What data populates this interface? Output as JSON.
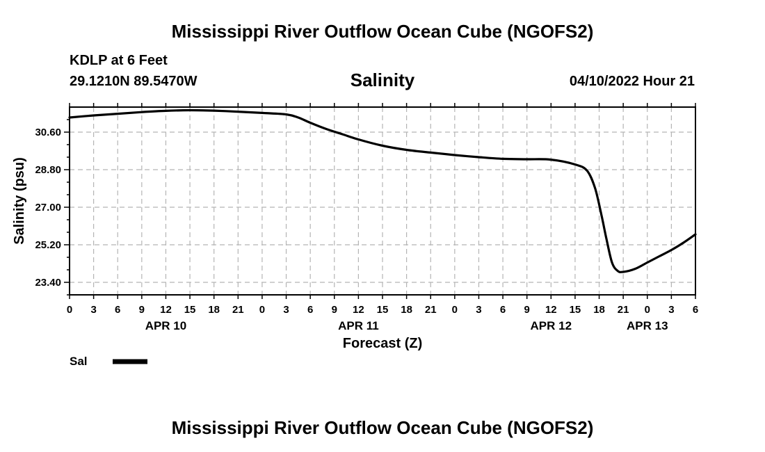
{
  "header": {
    "title": "Mississippi River Outflow Ocean Cube (NGOFS2)",
    "station": "KDLP at 6 Feet",
    "coords": "29.1210N  89.5470W",
    "datetime": "04/10/2022 Hour 21"
  },
  "footer": {
    "title": "Mississippi River Outflow Ocean Cube (NGOFS2)"
  },
  "colors": {
    "line": "#000000",
    "grid": "#b4b4b4"
  },
  "chart_data": {
    "type": "line",
    "title": "Salinity",
    "xlabel": "Forecast (Z)",
    "ylabel": "Salinity (psu)",
    "xlim": [
      0,
      78
    ],
    "ylim": [
      22.8,
      31.8
    ],
    "grid": true,
    "yticks": [
      23.4,
      25.2,
      27.0,
      28.8,
      30.6
    ],
    "ytick_labels": [
      "23.40",
      "25.20",
      "27.00",
      "28.80",
      "30.60"
    ],
    "xtick_hours": [
      0,
      3,
      6,
      9,
      12,
      15,
      18,
      21,
      24,
      27,
      30,
      33,
      36,
      39,
      42,
      45,
      48,
      51,
      54,
      57,
      60,
      63,
      66,
      69,
      72,
      75,
      78
    ],
    "xtick_labels": [
      "0",
      "3",
      "6",
      "9",
      "12",
      "15",
      "18",
      "21",
      "0",
      "3",
      "6",
      "9",
      "12",
      "15",
      "18",
      "21",
      "0",
      "3",
      "6",
      "9",
      "12",
      "15",
      "18",
      "21",
      "0",
      "3",
      "6"
    ],
    "date_labels": [
      {
        "hour": 12,
        "label": "APR 10"
      },
      {
        "hour": 36,
        "label": "APR 11"
      },
      {
        "hour": 60,
        "label": "APR 12"
      },
      {
        "hour": 72,
        "label": "APR 13"
      }
    ],
    "series": [
      {
        "name": "Sal",
        "x": [
          0,
          3,
          6,
          9,
          12,
          15,
          18,
          21,
          24,
          27,
          28.5,
          30,
          32,
          34,
          36,
          39,
          42,
          45,
          48,
          51,
          54,
          57,
          60,
          63,
          64.5,
          65.5,
          66.3,
          66.9,
          67.6,
          68.3,
          69,
          70.5,
          72,
          73.5,
          75,
          76.5,
          78
        ],
        "y": [
          31.3,
          31.4,
          31.48,
          31.56,
          31.62,
          31.65,
          31.63,
          31.58,
          31.52,
          31.45,
          31.3,
          31.05,
          30.75,
          30.5,
          30.25,
          29.95,
          29.75,
          29.62,
          29.5,
          29.4,
          29.32,
          29.3,
          29.28,
          29.05,
          28.75,
          27.9,
          26.6,
          25.5,
          24.35,
          23.95,
          23.9,
          24.05,
          24.35,
          24.65,
          24.95,
          25.3,
          25.7
        ]
      }
    ],
    "legend": [
      {
        "label": "Sal",
        "position": "bottom-left"
      }
    ]
  }
}
